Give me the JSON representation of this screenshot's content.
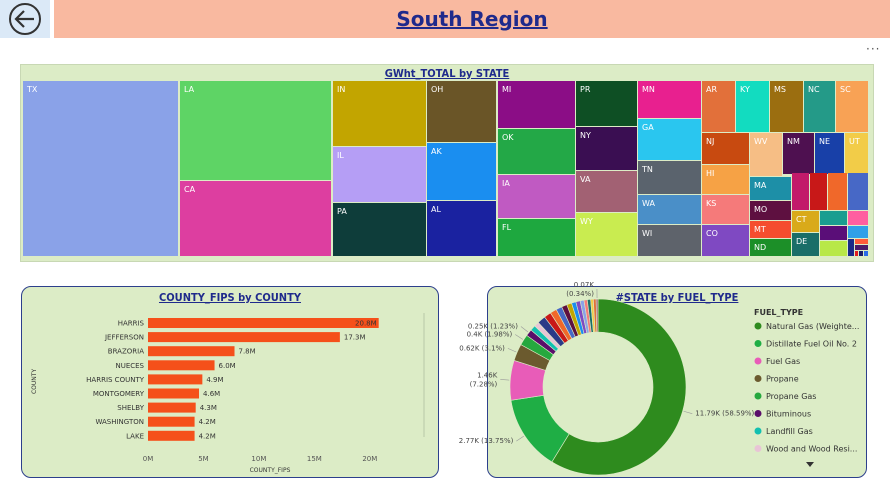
{
  "header": {
    "title": "South Region",
    "back_icon": "arrow-left-icon",
    "more_icon": "more-options-icon",
    "more_text": "···"
  },
  "colors": {
    "header_bg": "#f9b9a0",
    "panel_bg": "#dcecc6",
    "bar": "#f5501a",
    "title_text": "#1f2a8c"
  },
  "chart_data": [
    {
      "type": "treemap",
      "title": "GWht_TOTAL by STATE",
      "items": [
        {
          "label": "TX",
          "color": "#8aa2e8"
        },
        {
          "label": "LA",
          "color": "#5ed465"
        },
        {
          "label": "CA",
          "color": "#dd3ea0"
        },
        {
          "label": "IN",
          "color": "#c2a500"
        },
        {
          "label": "IL",
          "color": "#b59ef5"
        },
        {
          "label": "PA",
          "color": "#0e3d3a"
        },
        {
          "label": "OH",
          "color": "#6a5527"
        },
        {
          "label": "AK",
          "color": "#1a8ef0"
        },
        {
          "label": "AL",
          "color": "#1a22a0"
        },
        {
          "label": "MI",
          "color": "#8b0d86"
        },
        {
          "label": "OK",
          "color": "#23a847"
        },
        {
          "label": "IA",
          "color": "#c05ac2"
        },
        {
          "label": "FL",
          "color": "#1ea83f"
        },
        {
          "label": "PR",
          "color": "#0e4f24"
        },
        {
          "label": "NY",
          "color": "#3a0e52"
        },
        {
          "label": "VA",
          "color": "#a26173"
        },
        {
          "label": "WY",
          "color": "#c9ec50"
        },
        {
          "label": "MN",
          "color": "#e8208f"
        },
        {
          "label": "GA",
          "color": "#2ac6ef"
        },
        {
          "label": "TN",
          "color": "#5a636d"
        },
        {
          "label": "WA",
          "color": "#4a8fc8"
        },
        {
          "label": "WI",
          "color": "#5e636b"
        },
        {
          "label": "AR",
          "color": "#e2703a"
        },
        {
          "label": "KY",
          "color": "#12dcc0"
        },
        {
          "label": "MS",
          "color": "#9b6e10"
        },
        {
          "label": "NC",
          "color": "#249a88"
        },
        {
          "label": "SC",
          "color": "#f8a255"
        },
        {
          "label": "NJ",
          "color": "#c84a10"
        },
        {
          "label": "WV",
          "color": "#f6be85"
        },
        {
          "label": "NM",
          "color": "#4e1050"
        },
        {
          "label": "NE",
          "color": "#1840a8"
        },
        {
          "label": "UT",
          "color": "#f2cc48"
        },
        {
          "label": "HI",
          "color": "#f6a245"
        },
        {
          "label": "KS",
          "color": "#f57a7a"
        },
        {
          "label": "CO",
          "color": "#7f49c2"
        },
        {
          "label": "MA",
          "color": "#1d8fa7"
        },
        {
          "label": "MO",
          "color": "#5e1040"
        },
        {
          "label": "MT",
          "color": "#f54d2f"
        },
        {
          "label": "ND",
          "color": "#1c8f28"
        },
        {
          "label": "CT",
          "color": "#d9aa1a"
        },
        {
          "label": "DE",
          "color": "#1a6e68"
        },
        {
          "label": "",
          "color": "#c21a6a"
        },
        {
          "label": "",
          "color": "#c81818"
        },
        {
          "label": "",
          "color": "#f0682a"
        },
        {
          "label": "",
          "color": "#4768c6"
        },
        {
          "label": "",
          "color": "#1a9e90"
        },
        {
          "label": "",
          "color": "#ff5fa0"
        },
        {
          "label": "",
          "color": "#30a0e8"
        },
        {
          "label": "",
          "color": "#5a0e78"
        },
        {
          "label": "",
          "color": "#1a2a88"
        },
        {
          "label": "",
          "color": "#b8e848"
        },
        {
          "label": "",
          "color": "#ff5a3a"
        },
        {
          "label": "",
          "color": "#4a1a6a"
        },
        {
          "label": "",
          "color": "#e02020"
        },
        {
          "label": "",
          "color": "#1a1a6a"
        },
        {
          "label": "",
          "color": "#2a6ae8"
        }
      ]
    },
    {
      "type": "bar",
      "orientation": "horizontal",
      "title": "COUNTY_FIPS by COUNTY",
      "xlabel": "COUNTY_FIPS",
      "ylabel": "COUNTY",
      "categories": [
        "HARRIS",
        "JEFFERSON",
        "BRAZORIA",
        "NUECES",
        "HARRIS COUNTY",
        "MONTGOMERY",
        "SHELBY",
        "WASHINGTON",
        "LAKE"
      ],
      "values": [
        20.8,
        17.3,
        7.8,
        6.0,
        4.9,
        4.6,
        4.3,
        4.2,
        4.2
      ],
      "value_labels": [
        "20.8M",
        "17.3M",
        "7.8M",
        "6.0M",
        "4.9M",
        "4.6M",
        "4.3M",
        "4.2M",
        "4.2M"
      ],
      "xlim": [
        0,
        22
      ],
      "xticks": [
        0,
        5,
        10,
        15,
        20
      ],
      "xtick_labels": [
        "0M",
        "5M",
        "10M",
        "15M",
        "20M"
      ],
      "grid": false
    },
    {
      "type": "donut",
      "title": "#STATE by FUEL_TYPE",
      "legend_title": "FUEL_TYPE",
      "legend_position": "right",
      "legend": [
        {
          "name": "Natural Gas (Weighte...",
          "color": "#2e8b1e"
        },
        {
          "name": "Distillate Fuel Oil No. 2",
          "color": "#1fae45"
        },
        {
          "name": "Fuel Gas",
          "color": "#e85cb8"
        },
        {
          "name": "Propane",
          "color": "#6b5a2e"
        },
        {
          "name": "Propane Gas",
          "color": "#25a83e"
        },
        {
          "name": "Bituminous",
          "color": "#5a0e6a"
        },
        {
          "name": "Landfill Gas",
          "color": "#12c0b0"
        },
        {
          "name": "Wood and Wood Resi...",
          "color": "#e8c4d6"
        }
      ],
      "slices": [
        {
          "value": 58.59,
          "color": "#2e8b1e",
          "label": "11.79K (58.59%)"
        },
        {
          "value": 13.75,
          "color": "#1fae45",
          "label": "2.77K (13.75%)"
        },
        {
          "value": 7.28,
          "color": "#e85cb8",
          "label": "1.46K\n(7.28%)"
        },
        {
          "value": 3.1,
          "color": "#6b5a2e",
          "label": "0.62K (3.1%)"
        },
        {
          "value": 1.98,
          "color": "#25a83e",
          "label": "0.4K (1.98%)"
        },
        {
          "value": 1.23,
          "color": "#5a0e6a",
          "label": "0.25K (1.23%)"
        },
        {
          "value": 1.0,
          "color": "#12c0b0",
          "label": ""
        },
        {
          "value": 0.9,
          "color": "#e8c4d6",
          "label": ""
        },
        {
          "value": 1.5,
          "color": "#2a3a88",
          "label": ""
        },
        {
          "value": 1.3,
          "color": "#c81818",
          "label": ""
        },
        {
          "value": 1.2,
          "color": "#f0682a",
          "label": ""
        },
        {
          "value": 1.1,
          "color": "#4768c6",
          "label": ""
        },
        {
          "value": 1.0,
          "color": "#5e1040",
          "label": ""
        },
        {
          "value": 0.9,
          "color": "#c2a500",
          "label": ""
        },
        {
          "value": 0.8,
          "color": "#1a8ef0",
          "label": ""
        },
        {
          "value": 0.8,
          "color": "#7f49c2",
          "label": ""
        },
        {
          "value": 0.7,
          "color": "#8aa2e8",
          "label": ""
        },
        {
          "value": 0.6,
          "color": "#f57a7a",
          "label": ""
        },
        {
          "value": 0.6,
          "color": "#1a6e68",
          "label": ""
        },
        {
          "value": 0.5,
          "color": "#f2cc48",
          "label": ""
        },
        {
          "value": 0.5,
          "color": "#e2703a",
          "label": ""
        },
        {
          "value": 0.34,
          "color": "#a26173",
          "label": "0.07K\n(0.34%)"
        }
      ]
    }
  ]
}
